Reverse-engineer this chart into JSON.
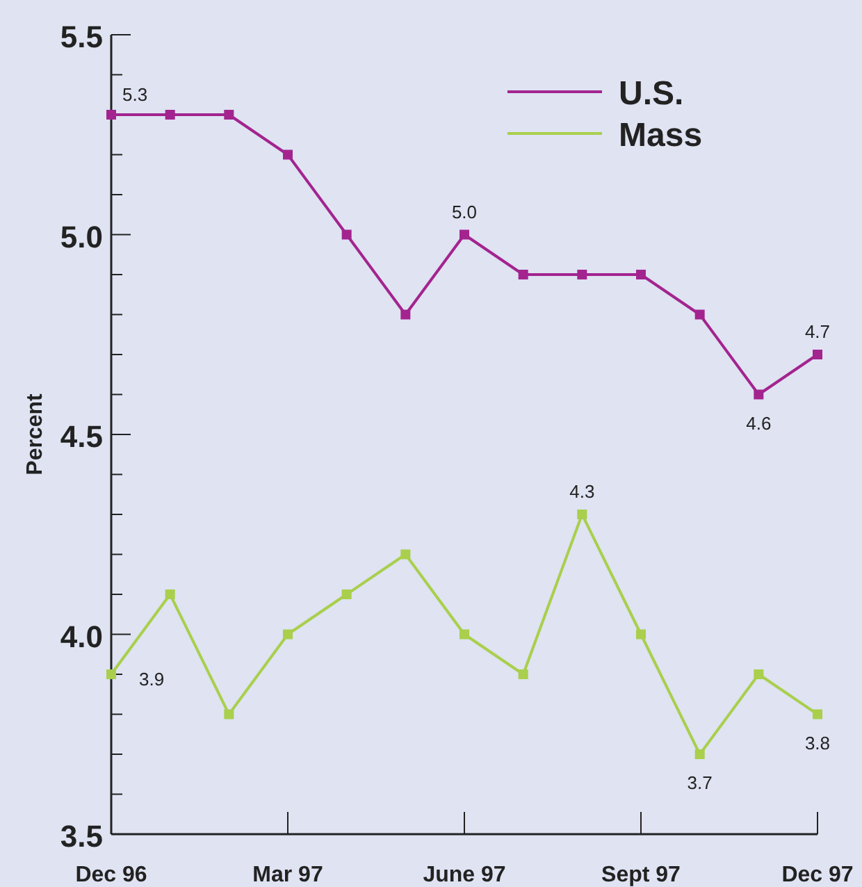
{
  "chart_data": {
    "type": "line",
    "ylabel": "Percent",
    "categories": [
      "Dec 96",
      null,
      null,
      "Mar 97",
      null,
      null,
      "June 97",
      null,
      null,
      "Sept 97",
      null,
      null,
      "Dec 97"
    ],
    "series": [
      {
        "name": "U.S.",
        "color": "#a3248f",
        "values": [
          5.3,
          5.3,
          5.3,
          5.2,
          5.0,
          4.8,
          5.0,
          4.9,
          4.9,
          4.9,
          4.8,
          4.6,
          4.7
        ],
        "value_labels": [
          "5.3",
          null,
          null,
          null,
          null,
          null,
          "5.0",
          null,
          null,
          null,
          null,
          "4.6",
          "4.7"
        ]
      },
      {
        "name": "Mass",
        "color": "#a9cf4c",
        "values": [
          3.9,
          4.1,
          3.8,
          4.0,
          4.1,
          4.2,
          4.0,
          3.9,
          4.3,
          4.0,
          3.7,
          3.9,
          3.8
        ],
        "value_labels": [
          "3.9",
          null,
          null,
          null,
          null,
          null,
          null,
          null,
          "4.3",
          null,
          "3.7",
          null,
          "3.8"
        ]
      }
    ],
    "ylim": [
      3.5,
      5.5
    ],
    "yticks": [
      3.5,
      {
        "value": 3.6,
        "label": null
      },
      {
        "value": 3.7,
        "label": null
      },
      {
        "value": 3.8,
        "label": null
      },
      {
        "value": 3.9,
        "label": null
      },
      "4.0",
      {
        "value": 4.1,
        "label": null
      },
      {
        "value": 4.2,
        "label": null
      },
      {
        "value": 4.3,
        "label": null
      },
      {
        "value": 4.4,
        "label": null
      },
      4.5,
      {
        "value": 4.6,
        "label": null
      },
      {
        "value": 4.7,
        "label": null
      },
      {
        "value": 4.8,
        "label": null
      },
      {
        "value": 4.9,
        "label": null
      },
      "5.0",
      {
        "value": 5.1,
        "label": null
      },
      {
        "value": 5.2,
        "label": null
      },
      {
        "value": 5.3,
        "label": null
      },
      {
        "value": 5.4,
        "label": null
      },
      5.5
    ],
    "grid": false,
    "legend": "top right",
    "marker": "square",
    "line_style": "solid"
  }
}
